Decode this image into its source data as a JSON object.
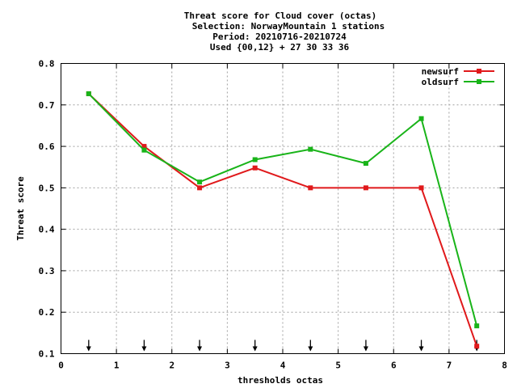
{
  "chart_data": {
    "type": "line",
    "title_lines": [
      "Threat score  for Cloud cover (octas)",
      "Selection: NorwayMountain      1 stations",
      "Period: 20210716-20210724",
      "Used {00,12} + 27 30 33 36"
    ],
    "xlabel": "thresholds octas",
    "ylabel": "Threat score",
    "xlim": [
      0,
      8
    ],
    "ylim": [
      0.1,
      0.8
    ],
    "xticks": [
      0,
      1,
      2,
      3,
      4,
      5,
      6,
      7,
      8
    ],
    "yticks": [
      0.1,
      0.2,
      0.3,
      0.4,
      0.5,
      0.6,
      0.7,
      0.8
    ],
    "grid": true,
    "legend_position": "top-right",
    "threshold_arrows_x": [
      0.5,
      1.5,
      2.5,
      3.5,
      4.5,
      5.5,
      6.5,
      7.5
    ],
    "series": [
      {
        "name": "newsurf",
        "color": "#e0191b",
        "x": [
          0.5,
          1.5,
          2.5,
          3.5,
          4.5,
          5.5,
          6.5,
          7.5
        ],
        "y": [
          0.727,
          0.6,
          0.5,
          0.548,
          0.5,
          0.5,
          0.5,
          0.118
        ]
      },
      {
        "name": "oldsurf",
        "color": "#19b419",
        "x": [
          0.5,
          1.5,
          2.5,
          3.5,
          4.5,
          5.5,
          6.5,
          7.5
        ],
        "y": [
          0.727,
          0.591,
          0.514,
          0.568,
          0.593,
          0.559,
          0.667,
          0.167
        ]
      }
    ]
  }
}
